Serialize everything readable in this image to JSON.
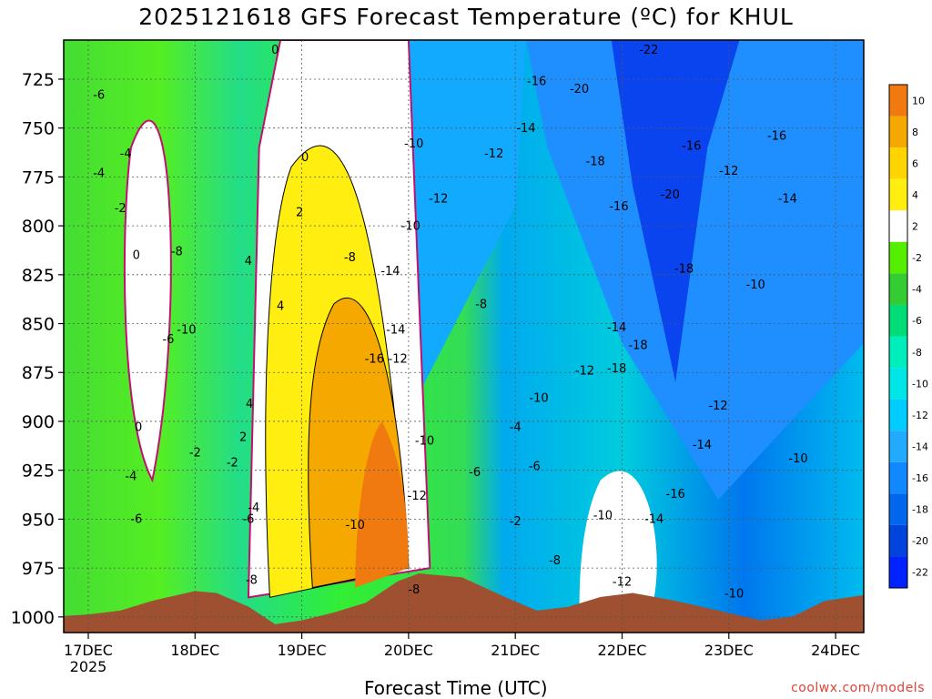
{
  "title": "2025121618 GFS Forecast Temperature (ºC) for KHUL",
  "credit": "coolwx.com/models",
  "chart_data": {
    "type": "heatmap",
    "title": "2025121618 GFS Forecast Temperature (ºC) for KHUL",
    "xlabel": "Forecast Time (UTC)",
    "ylabel": "",
    "x_ticks": [
      "17DEC",
      "18DEC",
      "19DEC",
      "20DEC",
      "21DEC",
      "22DEC",
      "23DEC",
      "24DEC"
    ],
    "x_tick_sublabel": "2025",
    "y_ticks": [
      725,
      750,
      775,
      800,
      825,
      850,
      875,
      900,
      925,
      950,
      975,
      1000
    ],
    "y_axis_inverted": true,
    "y_range": [
      705,
      1008
    ],
    "colorbar_ticks": [
      10,
      8,
      6,
      4,
      2,
      -2,
      -4,
      -6,
      -8,
      -10,
      -12,
      -14,
      -16,
      -18,
      -20,
      -22
    ],
    "colorbar_colors": [
      "#f07a10",
      "#f5a800",
      "#ffd400",
      "#ffee10",
      "#ffffff",
      "#55ee00",
      "#33cc33",
      "#00dd77",
      "#00eebb",
      "#00e6e6",
      "#00ccff",
      "#22aaff",
      "#1188ff",
      "#0066ee",
      "#0044dd",
      "#0022ff"
    ],
    "grid": true,
    "contour_labels": [
      {
        "v": "-6",
        "x": 0.1,
        "p": 735
      },
      {
        "v": "-4",
        "x": 0.35,
        "p": 765
      },
      {
        "v": "-4",
        "x": 0.1,
        "p": 775
      },
      {
        "v": "-2",
        "x": 0.3,
        "p": 793
      },
      {
        "v": "0",
        "x": 0.45,
        "p": 817
      },
      {
        "v": "-8",
        "x": 0.83,
        "p": 815
      },
      {
        "v": "-10",
        "x": 0.92,
        "p": 855
      },
      {
        "v": "-6",
        "x": 0.75,
        "p": 860
      },
      {
        "v": "0",
        "x": 0.47,
        "p": 905
      },
      {
        "v": "-2",
        "x": 1.0,
        "p": 918
      },
      {
        "v": "-4",
        "x": 0.4,
        "p": 930
      },
      {
        "v": "-6",
        "x": 0.45,
        "p": 952
      },
      {
        "v": "0",
        "x": 1.75,
        "p": 712
      },
      {
        "v": "0",
        "x": 2.03,
        "p": 767
      },
      {
        "v": "2",
        "x": 1.98,
        "p": 795
      },
      {
        "v": "4",
        "x": 1.5,
        "p": 820
      },
      {
        "v": "4",
        "x": 1.8,
        "p": 843
      },
      {
        "v": "4",
        "x": 1.51,
        "p": 893
      },
      {
        "v": "2",
        "x": 1.45,
        "p": 910
      },
      {
        "v": "-2",
        "x": 1.35,
        "p": 923
      },
      {
        "v": "-4",
        "x": 1.55,
        "p": 946
      },
      {
        "v": "-6",
        "x": 1.5,
        "p": 952
      },
      {
        "v": "-8",
        "x": 1.53,
        "p": 983
      },
      {
        "v": "-8",
        "x": 2.45,
        "p": 818
      },
      {
        "v": "-10",
        "x": 3.05,
        "p": 760
      },
      {
        "v": "-12",
        "x": 3.28,
        "p": 788
      },
      {
        "v": "-10",
        "x": 3.02,
        "p": 802
      },
      {
        "v": "-14",
        "x": 2.83,
        "p": 825
      },
      {
        "v": "-14",
        "x": 2.88,
        "p": 855
      },
      {
        "v": "-16",
        "x": 2.68,
        "p": 870
      },
      {
        "v": "-12",
        "x": 2.9,
        "p": 870
      },
      {
        "v": "-10",
        "x": 3.15,
        "p": 912
      },
      {
        "v": "-12",
        "x": 3.08,
        "p": 940
      },
      {
        "v": "-10",
        "x": 2.5,
        "p": 955
      },
      {
        "v": "-8",
        "x": 3.05,
        "p": 988
      },
      {
        "v": "-12",
        "x": 3.8,
        "p": 765
      },
      {
        "v": "-8",
        "x": 3.68,
        "p": 842
      },
      {
        "v": "-6",
        "x": 3.62,
        "p": 928
      },
      {
        "v": "-4",
        "x": 4.0,
        "p": 905
      },
      {
        "v": "-2",
        "x": 4.0,
        "p": 953
      },
      {
        "v": "-10",
        "x": 4.22,
        "p": 890
      },
      {
        "v": "-6",
        "x": 4.18,
        "p": 925
      },
      {
        "v": "-8",
        "x": 4.37,
        "p": 973
      },
      {
        "v": "-16",
        "x": 4.2,
        "p": 728
      },
      {
        "v": "-20",
        "x": 4.6,
        "p": 732
      },
      {
        "v": "-14",
        "x": 4.1,
        "p": 752
      },
      {
        "v": "-18",
        "x": 4.75,
        "p": 769
      },
      {
        "v": "-16",
        "x": 4.97,
        "p": 792
      },
      {
        "v": "-14",
        "x": 4.95,
        "p": 854
      },
      {
        "v": "-12",
        "x": 4.65,
        "p": 876
      },
      {
        "v": "-18",
        "x": 5.15,
        "p": 863
      },
      {
        "v": "-18",
        "x": 4.95,
        "p": 875
      },
      {
        "v": "-10",
        "x": 4.82,
        "p": 950
      },
      {
        "v": "-12",
        "x": 5.0,
        "p": 984
      },
      {
        "v": "-22",
        "x": 5.25,
        "p": 712
      },
      {
        "v": "-20",
        "x": 5.45,
        "p": 786
      },
      {
        "v": "-18",
        "x": 5.58,
        "p": 824
      },
      {
        "v": "-16",
        "x": 5.65,
        "p": 761
      },
      {
        "v": "-12",
        "x": 6.0,
        "p": 774
      },
      {
        "v": "-16",
        "x": 6.45,
        "p": 756
      },
      {
        "v": "-14",
        "x": 6.55,
        "p": 788
      },
      {
        "v": "-10",
        "x": 6.25,
        "p": 832
      },
      {
        "v": "-12",
        "x": 5.9,
        "p": 894
      },
      {
        "v": "-14",
        "x": 5.75,
        "p": 914
      },
      {
        "v": "-16",
        "x": 5.5,
        "p": 939
      },
      {
        "v": "-14",
        "x": 5.3,
        "p": 952
      },
      {
        "v": "-10",
        "x": 6.05,
        "p": 990
      },
      {
        "v": "-10",
        "x": 6.65,
        "p": 921
      }
    ]
  }
}
